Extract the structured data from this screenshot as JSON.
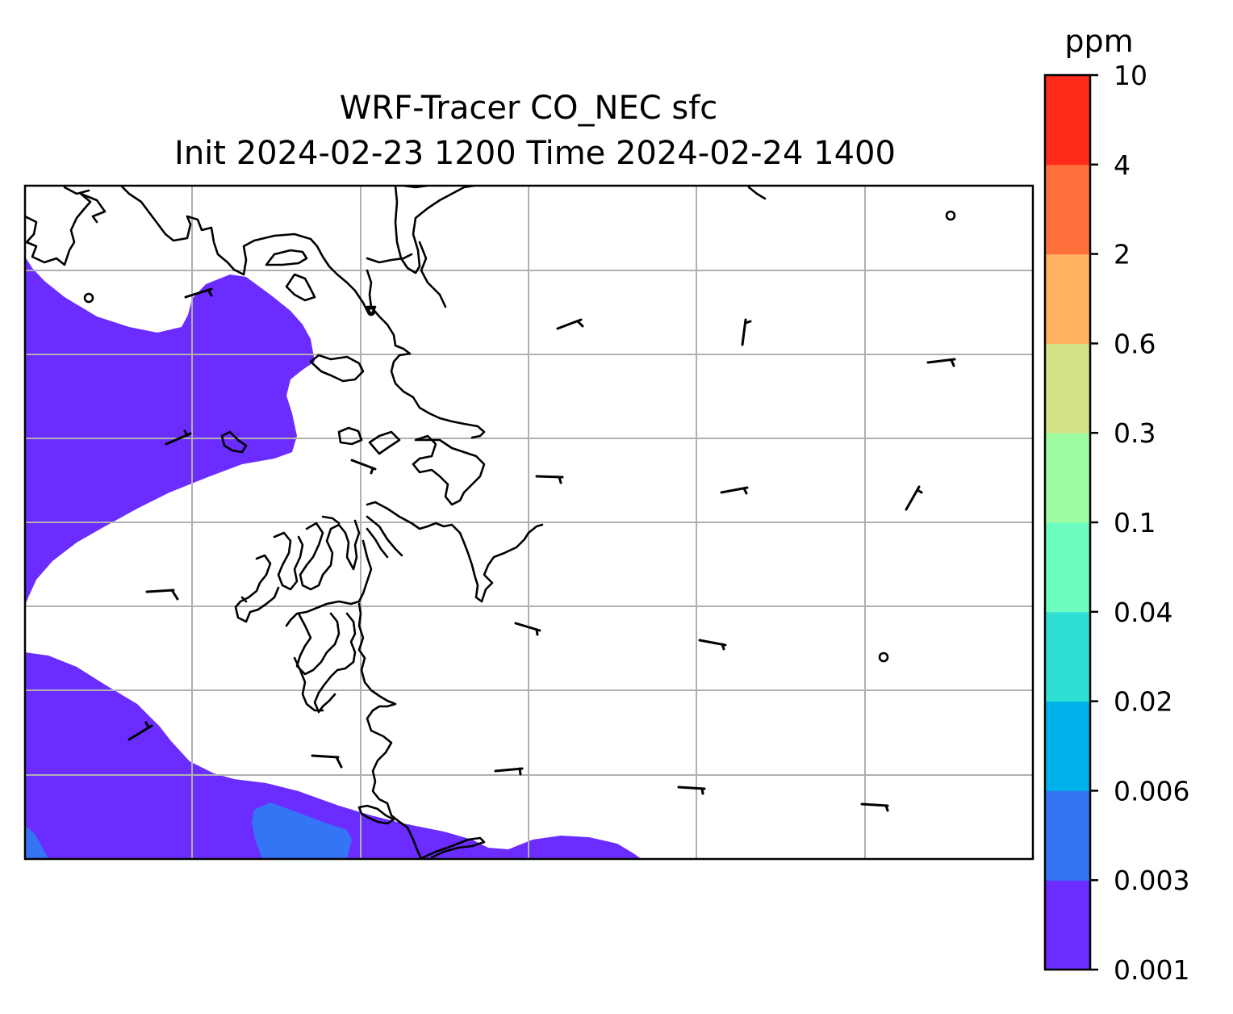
{
  "title": {
    "line1": "WRF-Tracer CO_NEC sfc",
    "line2": "Init 2024-02-23 1200 Time 2024-02-24 1400"
  },
  "colorbar": {
    "unit": "ppm",
    "levels": [
      "0.001",
      "0.003",
      "0.006",
      "0.02",
      "0.04",
      "0.1",
      "0.3",
      "0.6",
      "2",
      "4",
      "10"
    ],
    "colors": [
      "#6a2cff",
      "#3575f5",
      "#00b2ec",
      "#30dfd4",
      "#6bfcc0",
      "#9dfda1",
      "#d1e287",
      "#ffb160",
      "#ff703c",
      "#ff2a1a"
    ]
  },
  "map": {
    "gridlines": true,
    "coastlines": true,
    "field_colors": {
      "lowest_band": "#6a2cff",
      "second_band": "#3575f5"
    }
  }
}
